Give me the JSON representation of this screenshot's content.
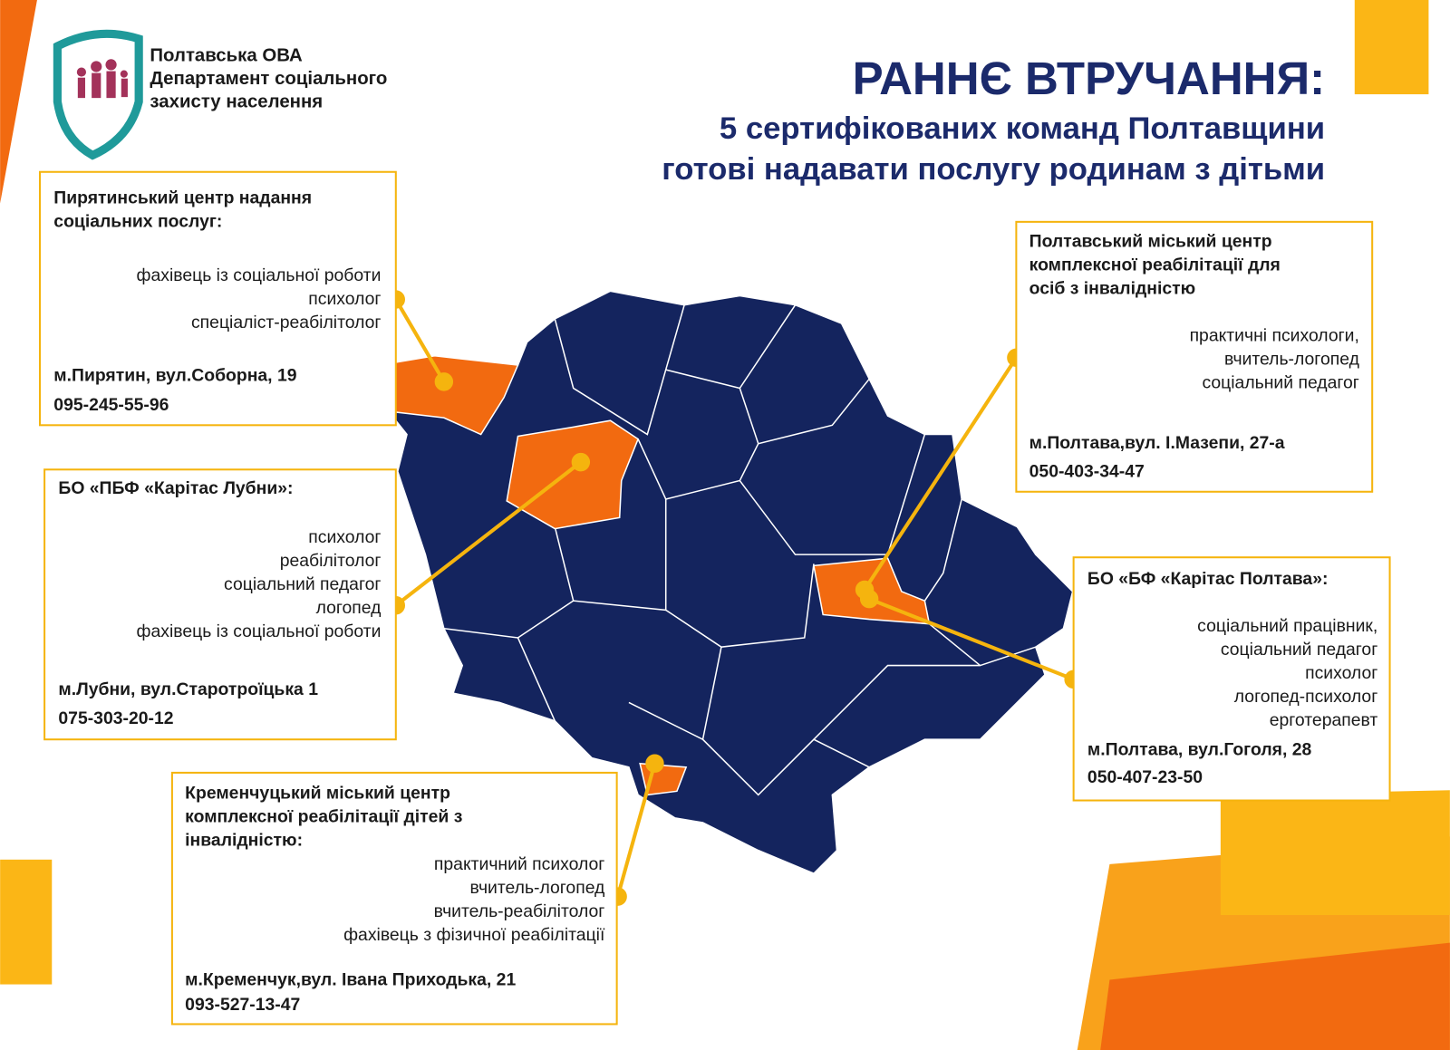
{
  "header": {
    "org_lines": [
      "Полтавська ОВА",
      "Департамент соціального",
      "захисту населення"
    ],
    "title": "РАННЄ ВТРУЧАННЯ:",
    "subtitle_lines": [
      "5 сертифікованих команд Полтавщини",
      "готові надавати послугу родинам з дітьми"
    ]
  },
  "cards": [
    {
      "title_lines": [
        "Пирятинський центр надання",
        "соціальних послуг:"
      ],
      "roles": [
        "фахівець із соціальної роботи",
        "психолог",
        "спеціаліст-реабілітолог"
      ],
      "address": "м.Пирятин, вул.Соборна, 19",
      "phone": "095-245-55-96"
    },
    {
      "title_lines": [
        "БО «ПБФ «Карітас Лубни»:"
      ],
      "roles": [
        "психолог",
        "реабілітолог",
        "соціальний педагог",
        "логопед",
        "фахівець із соціальної роботи"
      ],
      "address": "м.Лубни, вул.Старотроїцька 1",
      "phone": "075-303-20-12"
    },
    {
      "title_lines": [
        "Кременчуцький міський центр",
        "комплексної реабілітації дітей з",
        "інвалідністю:"
      ],
      "roles": [
        "практичний психолог",
        "вчитель-логопед",
        "вчитель-реабілітолог",
        "фахівець з фізичної реабілітації"
      ],
      "address": "м.Кременчук,вул. Івана Приходька, 21",
      "phone": "093-527-13-47"
    },
    {
      "title_lines": [
        "Полтавський міський центр",
        "комплексної реабілітації для",
        "осіб з інвалідністю"
      ],
      "roles": [
        "практичні психологи,",
        "вчитель-логопед",
        "соціальний педагог"
      ],
      "address": "м.Полтава,вул. І.Мазепи, 27-а",
      "phone": "050-403-34-47"
    },
    {
      "title_lines": [
        "БО «БФ «Карітас Полтава»:"
      ],
      "roles": [
        "соціальний працівник,",
        "соціальний педагог",
        "психолог",
        "логопед-психолог",
        "ерготерапевт"
      ],
      "address": "м.Полтава, вул.Гоголя, 28",
      "phone": "050-407-23-50"
    }
  ]
}
